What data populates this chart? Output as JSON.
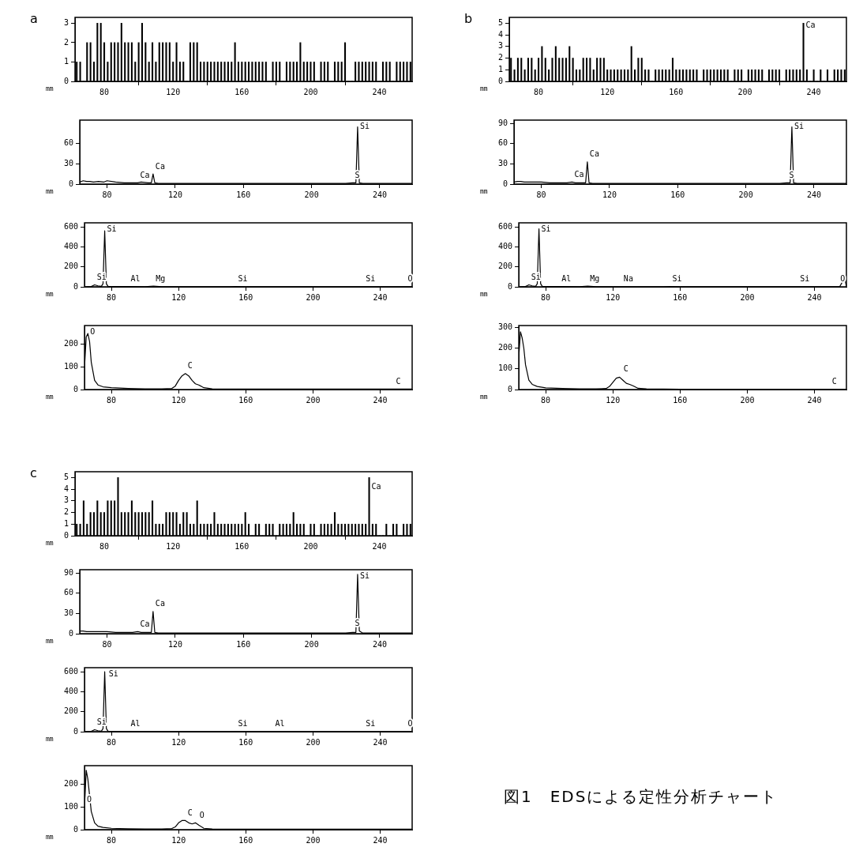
{
  "chart_data": [
    {
      "type": "bar",
      "title": "a",
      "xlabel": "mm",
      "color": "#000000",
      "xlim": [
        63,
        259
      ],
      "xticks": [
        80,
        120,
        160,
        200,
        240
      ],
      "ylim": [
        0,
        3.3
      ],
      "yticks": [
        0,
        1,
        2,
        3
      ],
      "x": [
        64,
        66,
        68,
        70,
        72,
        74,
        76,
        78,
        80,
        82,
        84,
        86,
        88,
        90,
        92,
        94,
        96,
        98,
        100,
        102,
        104,
        106,
        108,
        110,
        112,
        114,
        116,
        118,
        120,
        122,
        124,
        126,
        128,
        130,
        132,
        134,
        136,
        138,
        140,
        142,
        144,
        146,
        148,
        150,
        152,
        154,
        156,
        158,
        160,
        162,
        164,
        166,
        168,
        170,
        172,
        174,
        176,
        178,
        180,
        182,
        184,
        186,
        188,
        190,
        192,
        194,
        196,
        198,
        200,
        202,
        204,
        206,
        208,
        210,
        212,
        214,
        216,
        218,
        220,
        222,
        224,
        226,
        228,
        230,
        232,
        234,
        236,
        238,
        240,
        242,
        244,
        246,
        248,
        250,
        252,
        254,
        256,
        258
      ],
      "values": [
        1,
        1,
        0,
        2,
        2,
        1,
        3,
        3,
        2,
        1,
        2,
        2,
        2,
        3,
        2,
        2,
        2,
        1,
        2,
        3,
        2,
        1,
        2,
        1,
        2,
        2,
        2,
        2,
        1,
        2,
        1,
        1,
        0,
        2,
        2,
        2,
        1,
        1,
        1,
        1,
        1,
        1,
        1,
        1,
        1,
        1,
        2,
        1,
        1,
        1,
        1,
        1,
        1,
        1,
        1,
        1,
        0,
        1,
        1,
        1,
        0,
        1,
        1,
        1,
        1,
        2,
        1,
        1,
        1,
        1,
        0,
        1,
        1,
        1,
        0,
        1,
        1,
        1,
        2,
        0,
        0,
        1,
        1,
        1,
        1,
        1,
        1,
        1,
        0,
        1,
        1,
        1,
        0,
        1,
        1,
        1,
        1,
        1
      ]
    },
    {
      "type": "line",
      "xlabel": "mm",
      "color": "#000000",
      "xlim": [
        64,
        259
      ],
      "xticks": [
        80,
        120,
        160,
        200,
        240
      ],
      "ylim": [
        0,
        95
      ],
      "yticks": [
        0,
        30,
        60
      ],
      "x": [
        64,
        66,
        68,
        70,
        72,
        75,
        78,
        80,
        85,
        90,
        95,
        98,
        100,
        104,
        106,
        107,
        108,
        110,
        120,
        140,
        160,
        180,
        200,
        220,
        224,
        226,
        227,
        228,
        230,
        240,
        259
      ],
      "values": [
        3,
        5,
        4,
        4,
        3,
        4,
        3,
        5,
        3,
        2,
        2,
        2,
        3,
        2,
        2,
        15,
        2,
        1,
        1,
        1,
        1,
        1,
        1,
        1,
        2,
        2,
        85,
        2,
        1,
        1,
        1
      ],
      "annotations": [
        {
          "text": "Ca",
          "x": 98,
          "y": 2
        },
        {
          "text": "Ca",
          "x": 107,
          "y": 15
        },
        {
          "text": "S",
          "x": 224,
          "y": 2
        },
        {
          "text": "Si",
          "x": 227,
          "y": 85
        }
      ]
    },
    {
      "type": "line",
      "xlabel": "mm",
      "color": "#000000",
      "xlim": [
        64,
        259
      ],
      "xticks": [
        80,
        120,
        160,
        200,
        240
      ],
      "ylim": [
        0,
        640
      ],
      "yticks": [
        0,
        200,
        400,
        600
      ],
      "x": [
        64,
        68,
        70,
        72,
        74,
        75,
        76,
        77,
        78,
        80,
        90,
        100,
        105,
        110,
        120,
        150,
        154,
        160,
        200,
        230,
        240,
        255,
        259
      ],
      "values": [
        0,
        3,
        20,
        10,
        5,
        30,
        560,
        30,
        5,
        3,
        4,
        2,
        8,
        1,
        1,
        1,
        3,
        1,
        1,
        2,
        1,
        2,
        1
      ],
      "annotations": [
        {
          "text": "Si",
          "x": 70,
          "y": 20
        },
        {
          "text": "Si",
          "x": 76,
          "y": 560
        },
        {
          "text": "Al",
          "x": 90,
          "y": 4
        },
        {
          "text": "Mg",
          "x": 105,
          "y": 8
        },
        {
          "text": "Si",
          "x": 154,
          "y": 3
        },
        {
          "text": "Si",
          "x": 230,
          "y": 2
        },
        {
          "text": "O",
          "x": 255,
          "y": 2
        }
      ]
    },
    {
      "type": "line",
      "xlabel": "mm",
      "color": "#000000",
      "xlim": [
        64,
        259
      ],
      "xticks": [
        80,
        120,
        160,
        200,
        240
      ],
      "ylim": [
        0,
        280
      ],
      "yticks": [
        0,
        100,
        200
      ],
      "x": [
        64,
        65,
        66,
        67,
        68,
        70,
        72,
        75,
        80,
        90,
        100,
        110,
        116,
        118,
        120,
        122,
        124,
        126,
        128,
        130,
        132,
        135,
        140,
        160,
        200,
        259
      ],
      "values": [
        100,
        230,
        245,
        210,
        120,
        40,
        20,
        12,
        8,
        5,
        3,
        3,
        5,
        15,
        40,
        60,
        70,
        60,
        40,
        25,
        20,
        8,
        3,
        2,
        2,
        2
      ],
      "annotations": [
        {
          "text": "O",
          "x": 66,
          "y": 245
        },
        {
          "text": "C",
          "x": 124,
          "y": 70
        },
        {
          "text": "C",
          "x": 248,
          "y": 2
        }
      ]
    },
    {
      "type": "bar",
      "title": "b",
      "xlabel": "mm",
      "color": "#000000",
      "xlim": [
        63,
        259
      ],
      "xticks": [
        80,
        120,
        160,
        200,
        240
      ],
      "ylim": [
        0,
        5.5
      ],
      "yticks": [
        0,
        1,
        2,
        3,
        4,
        5
      ],
      "x": [
        64,
        66,
        68,
        70,
        72,
        74,
        76,
        78,
        80,
        82,
        84,
        86,
        88,
        90,
        92,
        94,
        96,
        98,
        100,
        102,
        104,
        106,
        108,
        110,
        112,
        114,
        116,
        118,
        120,
        122,
        124,
        126,
        128,
        130,
        132,
        134,
        136,
        138,
        140,
        142,
        144,
        146,
        148,
        150,
        152,
        154,
        156,
        158,
        160,
        162,
        164,
        166,
        168,
        170,
        172,
        174,
        176,
        178,
        180,
        182,
        184,
        186,
        188,
        190,
        192,
        194,
        196,
        198,
        200,
        202,
        204,
        206,
        208,
        210,
        212,
        214,
        216,
        218,
        220,
        222,
        224,
        226,
        228,
        230,
        232,
        234,
        236,
        238,
        240,
        242,
        244,
        246,
        248,
        250,
        252,
        254,
        256,
        258
      ],
      "values": [
        2,
        1,
        2,
        2,
        1,
        2,
        2,
        1,
        2,
        3,
        2,
        1,
        2,
        3,
        2,
        2,
        2,
        3,
        2,
        1,
        1,
        2,
        2,
        2,
        1,
        2,
        2,
        2,
        1,
        1,
        1,
        1,
        1,
        1,
        1,
        3,
        1,
        2,
        2,
        1,
        1,
        0,
        1,
        1,
        1,
        1,
        1,
        2,
        1,
        1,
        1,
        1,
        1,
        1,
        1,
        0,
        1,
        1,
        1,
        1,
        1,
        1,
        1,
        1,
        0,
        1,
        1,
        1,
        0,
        1,
        1,
        1,
        1,
        1,
        0,
        1,
        1,
        1,
        1,
        0,
        1,
        1,
        1,
        1,
        1,
        5,
        1,
        0,
        1,
        0,
        1,
        0,
        1,
        0,
        1,
        1,
        1,
        1
      ],
      "annotations": [
        {
          "text": "Ca",
          "x": 234,
          "y": 4.2
        }
      ]
    },
    {
      "type": "line",
      "xlabel": "mm",
      "color": "#000000",
      "xlim": [
        64,
        259
      ],
      "xticks": [
        80,
        120,
        160,
        200,
        240
      ],
      "ylim": [
        0,
        95
      ],
      "yticks": [
        0,
        30,
        60,
        90
      ],
      "x": [
        64,
        66,
        68,
        70,
        72,
        75,
        78,
        80,
        85,
        90,
        95,
        98,
        100,
        104,
        106,
        107,
        108,
        110,
        120,
        140,
        160,
        180,
        200,
        220,
        224,
        226,
        227,
        228,
        230,
        240,
        259
      ],
      "values": [
        3,
        4,
        4,
        3,
        3,
        3,
        3,
        3,
        2,
        2,
        2,
        3,
        2,
        2,
        2,
        33,
        2,
        1,
        1,
        1,
        1,
        1,
        1,
        1,
        2,
        2,
        85,
        2,
        1,
        1,
        1
      ],
      "annotations": [
        {
          "text": "Ca",
          "x": 98,
          "y": 3
        },
        {
          "text": "Ca",
          "x": 107,
          "y": 33
        },
        {
          "text": "S",
          "x": 224,
          "y": 2
        },
        {
          "text": "Si",
          "x": 227,
          "y": 85
        }
      ]
    },
    {
      "type": "line",
      "xlabel": "mm",
      "color": "#000000",
      "xlim": [
        64,
        259
      ],
      "xticks": [
        80,
        120,
        160,
        200,
        240
      ],
      "ylim": [
        0,
        640
      ],
      "yticks": [
        0,
        200,
        400,
        600
      ],
      "x": [
        64,
        68,
        70,
        72,
        74,
        75,
        76,
        77,
        78,
        80,
        90,
        100,
        105,
        110,
        120,
        125,
        150,
        154,
        160,
        200,
        230,
        240,
        255,
        258,
        259
      ],
      "values": [
        0,
        3,
        20,
        10,
        5,
        30,
        580,
        30,
        5,
        3,
        4,
        2,
        8,
        1,
        1,
        2,
        1,
        3,
        1,
        1,
        2,
        1,
        2,
        90,
        1
      ],
      "annotations": [
        {
          "text": "Si",
          "x": 70,
          "y": 20
        },
        {
          "text": "Si",
          "x": 76,
          "y": 540
        },
        {
          "text": "Al",
          "x": 88,
          "y": 4
        },
        {
          "text": "Mg",
          "x": 105,
          "y": 8
        },
        {
          "text": "Na",
          "x": 125,
          "y": 2
        },
        {
          "text": "Si",
          "x": 154,
          "y": 3
        },
        {
          "text": "Si",
          "x": 230,
          "y": 2
        },
        {
          "text": "O",
          "x": 254,
          "y": 2
        }
      ]
    },
    {
      "type": "line",
      "xlabel": "mm",
      "color": "#000000",
      "xlim": [
        64,
        259
      ],
      "xticks": [
        80,
        120,
        160,
        200,
        240
      ],
      "ylim": [
        0,
        310
      ],
      "yticks": [
        0,
        100,
        200,
        300
      ],
      "x": [
        64,
        65,
        66,
        67,
        68,
        70,
        72,
        75,
        80,
        90,
        100,
        110,
        116,
        118,
        120,
        122,
        124,
        126,
        128,
        130,
        132,
        135,
        140,
        160,
        200,
        259
      ],
      "values": [
        160,
        280,
        250,
        200,
        120,
        45,
        25,
        15,
        8,
        5,
        3,
        3,
        5,
        15,
        35,
        55,
        60,
        45,
        30,
        25,
        18,
        6,
        3,
        2,
        2,
        2
      ],
      "annotations": [
        {
          "text": "C",
          "x": 125,
          "y": 62
        },
        {
          "text": "C",
          "x": 249,
          "y": 2
        }
      ]
    },
    {
      "type": "bar",
      "title": "c",
      "xlabel": "mm",
      "color": "#000000",
      "xlim": [
        63,
        259
      ],
      "xticks": [
        80,
        120,
        160,
        200,
        240
      ],
      "ylim": [
        0,
        5.5
      ],
      "yticks": [
        0,
        1,
        2,
        3,
        4,
        5
      ],
      "x": [
        64,
        66,
        68,
        70,
        72,
        74,
        76,
        78,
        80,
        82,
        84,
        86,
        88,
        90,
        92,
        94,
        96,
        98,
        100,
        102,
        104,
        106,
        108,
        110,
        112,
        114,
        116,
        118,
        120,
        122,
        124,
        126,
        128,
        130,
        132,
        134,
        136,
        138,
        140,
        142,
        144,
        146,
        148,
        150,
        152,
        154,
        156,
        158,
        160,
        162,
        164,
        166,
        168,
        170,
        172,
        174,
        176,
        178,
        180,
        182,
        184,
        186,
        188,
        190,
        192,
        194,
        196,
        198,
        200,
        202,
        204,
        206,
        208,
        210,
        212,
        214,
        216,
        218,
        220,
        222,
        224,
        226,
        228,
        230,
        232,
        234,
        236,
        238,
        240,
        242,
        244,
        246,
        248,
        250,
        252,
        254,
        256,
        258
      ],
      "values": [
        1,
        1,
        3,
        1,
        2,
        2,
        3,
        2,
        2,
        3,
        3,
        3,
        5,
        2,
        2,
        2,
        3,
        2,
        2,
        2,
        2,
        2,
        3,
        1,
        1,
        1,
        2,
        2,
        2,
        2,
        1,
        2,
        2,
        1,
        1,
        3,
        1,
        1,
        1,
        1,
        2,
        1,
        1,
        1,
        1,
        1,
        1,
        1,
        1,
        2,
        1,
        0,
        1,
        1,
        0,
        1,
        1,
        1,
        0,
        1,
        1,
        1,
        1,
        2,
        1,
        1,
        1,
        0,
        1,
        1,
        0,
        1,
        1,
        1,
        1,
        2,
        1,
        1,
        1,
        1,
        1,
        1,
        1,
        1,
        1,
        5,
        1,
        1,
        0,
        0,
        1,
        0,
        1,
        1,
        0,
        1,
        1,
        1
      ],
      "annotations": [
        {
          "text": "Ca",
          "x": 234,
          "y": 3.6
        }
      ]
    },
    {
      "type": "line",
      "xlabel": "mm",
      "color": "#000000",
      "xlim": [
        64,
        259
      ],
      "xticks": [
        80,
        120,
        160,
        200,
        240
      ],
      "ylim": [
        0,
        95
      ],
      "yticks": [
        0,
        30,
        60,
        90
      ],
      "x": [
        64,
        66,
        68,
        70,
        72,
        75,
        78,
        80,
        85,
        90,
        95,
        98,
        100,
        104,
        106,
        107,
        108,
        110,
        120,
        140,
        160,
        180,
        200,
        220,
        224,
        226,
        227,
        228,
        230,
        240,
        259
      ],
      "values": [
        4,
        4,
        3,
        3,
        3,
        3,
        3,
        3,
        2,
        2,
        2,
        3,
        2,
        2,
        2,
        33,
        2,
        1,
        1,
        1,
        1,
        1,
        1,
        1,
        2,
        2,
        88,
        4,
        1,
        1,
        1
      ],
      "annotations": [
        {
          "text": "Ca",
          "x": 98,
          "y": 3
        },
        {
          "text": "Ca",
          "x": 107,
          "y": 33
        },
        {
          "text": "S",
          "x": 224,
          "y": 4
        },
        {
          "text": "Si",
          "x": 227,
          "y": 88
        }
      ]
    },
    {
      "type": "line",
      "xlabel": "mm",
      "color": "#000000",
      "xlim": [
        64,
        259
      ],
      "xticks": [
        80,
        120,
        160,
        200,
        240
      ],
      "ylim": [
        0,
        640
      ],
      "yticks": [
        0,
        200,
        400,
        600
      ],
      "x": [
        64,
        68,
        70,
        72,
        74,
        75,
        76,
        77,
        78,
        80,
        90,
        100,
        110,
        120,
        150,
        154,
        160,
        176,
        200,
        230,
        240,
        255,
        259
      ],
      "values": [
        0,
        3,
        20,
        10,
        5,
        30,
        600,
        30,
        5,
        3,
        4,
        2,
        1,
        1,
        1,
        3,
        1,
        2,
        1,
        2,
        1,
        2,
        1
      ],
      "annotations": [
        {
          "text": "Si",
          "x": 70,
          "y": 20
        },
        {
          "text": "Si",
          "x": 77,
          "y": 540
        },
        {
          "text": "Al",
          "x": 90,
          "y": 4
        },
        {
          "text": "Si",
          "x": 154,
          "y": 3
        },
        {
          "text": "Al",
          "x": 176,
          "y": 2
        },
        {
          "text": "Si",
          "x": 230,
          "y": 2
        },
        {
          "text": "O",
          "x": 255,
          "y": 2
        }
      ]
    },
    {
      "type": "line",
      "xlabel": "mm",
      "color": "#000000",
      "xlim": [
        64,
        259
      ],
      "xticks": [
        80,
        120,
        160,
        200,
        240
      ],
      "ylim": [
        0,
        280
      ],
      "yticks": [
        0,
        100,
        200
      ],
      "x": [
        64,
        65,
        66,
        67,
        68,
        70,
        72,
        75,
        80,
        90,
        100,
        110,
        116,
        118,
        120,
        122,
        124,
        126,
        128,
        130,
        132,
        135,
        140,
        160,
        200,
        259
      ],
      "values": [
        100,
        260,
        220,
        150,
        80,
        30,
        15,
        10,
        6,
        4,
        3,
        3,
        5,
        12,
        30,
        40,
        40,
        30,
        25,
        30,
        20,
        6,
        3,
        2,
        2,
        2
      ],
      "annotations": [
        {
          "text": "O",
          "x": 64,
          "y": 100
        },
        {
          "text": "C",
          "x": 124,
          "y": 40
        },
        {
          "text": "O",
          "x": 131,
          "y": 28
        },
        "図1　EDSによる定性分析チャート"
      ]
    }
  ]
}
